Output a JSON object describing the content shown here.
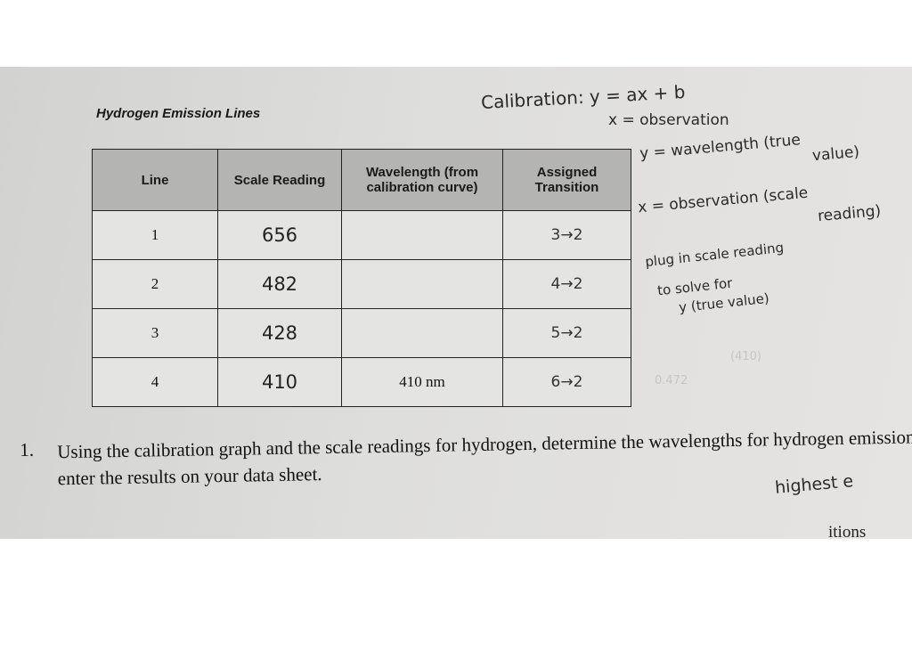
{
  "header": {
    "title": "Hydrogen Emission Lines"
  },
  "table": {
    "columns": [
      "Line",
      "Scale Reading",
      "Wavelength (from calibration curve)",
      "Assigned Transition"
    ],
    "rows": [
      [
        "1",
        "656",
        null,
        "3→2"
      ],
      [
        "2",
        "482",
        null,
        "4→2"
      ],
      [
        "3",
        "428",
        null,
        "5→2"
      ],
      [
        "4",
        "410",
        "410 nm",
        "6→2"
      ]
    ]
  },
  "notes": [
    "Calibration: y = ax + b",
    "x = observation",
    "y = wavelength (true",
    "value)",
    "x = observation (scale",
    "reading)",
    "plug in scale reading",
    "to solve for",
    "y (true value)",
    "(410)",
    "0.472",
    "highest e"
  ],
  "question": {
    "number": "1.",
    "text": "Using the calibration graph and the scale readings for hydrogen, determine the wavelengths for hydrogen emission; enter the results on your data sheet."
  },
  "footer_cut": "itions Assign"
}
